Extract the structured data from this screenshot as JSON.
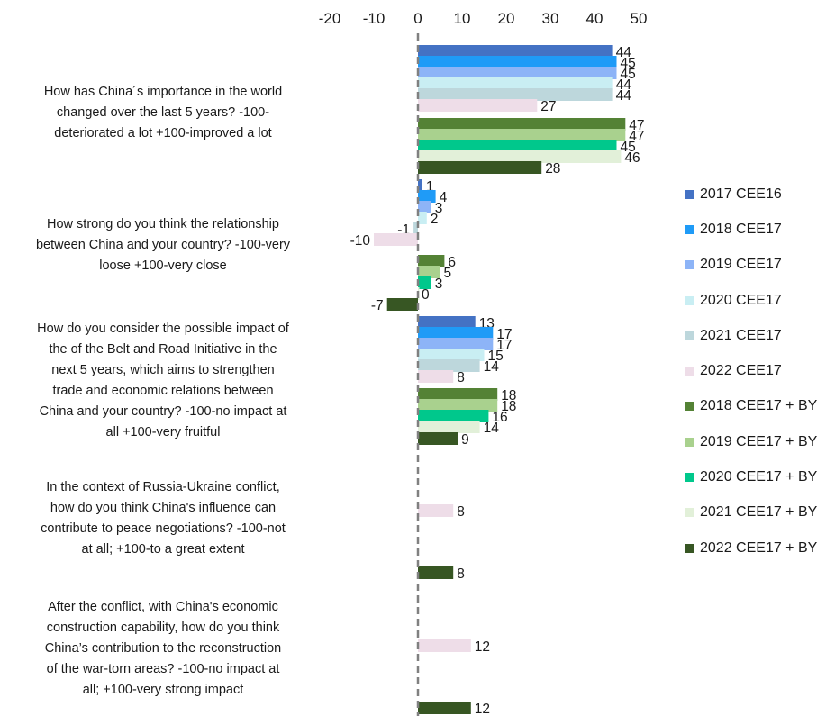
{
  "chart_data": {
    "type": "bar",
    "orientation": "horizontal",
    "xlim": [
      -20,
      50
    ],
    "x_ticks": [
      -20,
      -10,
      0,
      10,
      20,
      30,
      40,
      50
    ],
    "axis_position": "top",
    "grid": false,
    "legend_position": "right",
    "categories": [
      "How has China´s importance in the world changed over the last 5 years? -100-deteriorated a lot +100-improved a lot",
      "How strong do you think the relationship between China and your country? -100-very loose +100-very close",
      "How do you consider the possible impact of the of the Belt and Road Initiative in the next 5 years, which aims to strengthen trade and economic relations between China and your country? -100-no impact at all +100-very fruitful",
      "In the context of Russia-Ukraine conflict, how do you think China's influence can contribute to peace negotiations? -100-not at all; +100-to a great extent",
      "After the conflict, with China's economic construction capability, how do you think China’s contribution to the reconstruction of the war-torn areas? -100-no impact at all; +100-very strong impact"
    ],
    "series": [
      {
        "name": "2017 CEE16",
        "color": "#4472C4",
        "values": [
          44,
          1,
          13,
          null,
          null
        ]
      },
      {
        "name": "2018 CEE17",
        "color": "#1F9BF7",
        "values": [
          45,
          4,
          17,
          null,
          null
        ]
      },
      {
        "name": "2019 CEE17",
        "color": "#8DB4F7",
        "values": [
          45,
          3,
          17,
          null,
          null
        ]
      },
      {
        "name": "2020 CEE17",
        "color": "#C9EEF3",
        "values": [
          44,
          2,
          15,
          null,
          null
        ]
      },
      {
        "name": "2021 CEE17",
        "color": "#BDD7DC",
        "values": [
          44,
          -1,
          14,
          null,
          null
        ]
      },
      {
        "name": "2022 CEE17",
        "color": "#EEDDE8",
        "values": [
          27,
          -10,
          8,
          8,
          12
        ]
      },
      {
        "name": "2018 CEE17 + BY",
        "color": "#548235",
        "values": [
          47,
          6,
          18,
          null,
          null
        ]
      },
      {
        "name": "2019 CEE17 + BY",
        "color": "#A9D18E",
        "values": [
          47,
          5,
          18,
          null,
          null
        ]
      },
      {
        "name": "2020 CEE17 + BY",
        "color": "#00C88C",
        "values": [
          45,
          3,
          16,
          null,
          null
        ]
      },
      {
        "name": "2021 CEE17 + BY",
        "color": "#E2F0D9",
        "values": [
          46,
          0,
          14,
          null,
          null
        ]
      },
      {
        "name": "2022 CEE17 + BY",
        "color": "#375623",
        "values": [
          28,
          -7,
          9,
          8,
          12
        ]
      }
    ]
  },
  "question_lines": [
    [
      "How has China´s importance in the world",
      "changed over the last 5 years? -100-",
      "deteriorated a lot +100-improved a lot"
    ],
    [
      "How strong do you think the relationship",
      "between China and your country? -100-very",
      "loose +100-very close"
    ],
    [
      "How do you consider the possible impact of",
      "the of the Belt and Road Initiative in the",
      "next 5 years, which aims to strengthen",
      "trade and economic relations between",
      "China and your country? -100-no impact at",
      "all +100-very fruitful"
    ],
    [
      "In the context of Russia-Ukraine conflict,",
      "how do you think China's influence can",
      "contribute to peace negotiations? -100-not",
      "at all; +100-to a great extent"
    ],
    [
      "After the conflict, with China's economic",
      "construction capability, how do you think",
      "China’s contribution to the reconstruction",
      "of the war-torn areas? -100-no impact at",
      "all; +100-very strong impact"
    ]
  ]
}
